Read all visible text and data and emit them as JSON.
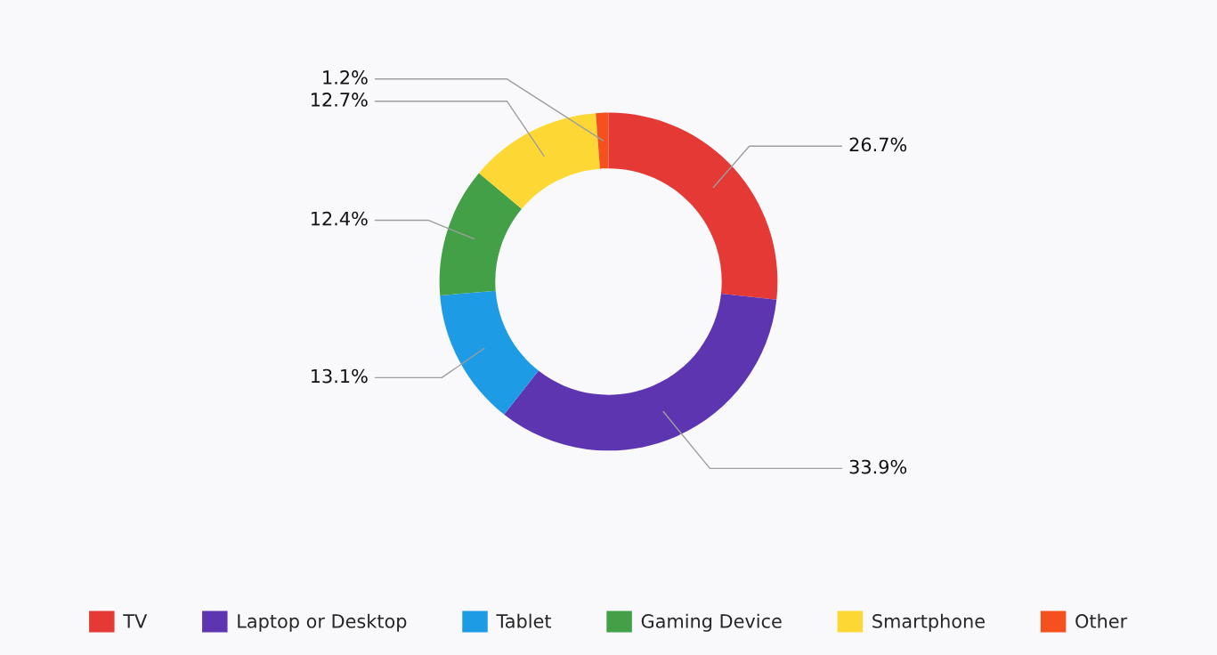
{
  "chart_data": {
    "type": "donut",
    "categories": [
      "TV",
      "Laptop or Desktop",
      "Tablet",
      "Gaming Device",
      "Smartphone",
      "Other"
    ],
    "values": [
      26.7,
      33.9,
      13.1,
      12.4,
      12.7,
      1.2
    ],
    "value_labels": [
      "26.7%",
      "33.9%",
      "13.1%",
      "12.4%",
      "12.7%",
      "1.2%"
    ],
    "colors": [
      "#e53935",
      "#5e35b1",
      "#1e9be5",
      "#43a047",
      "#fdd835",
      "#f4511e"
    ],
    "legend": "bottom"
  }
}
